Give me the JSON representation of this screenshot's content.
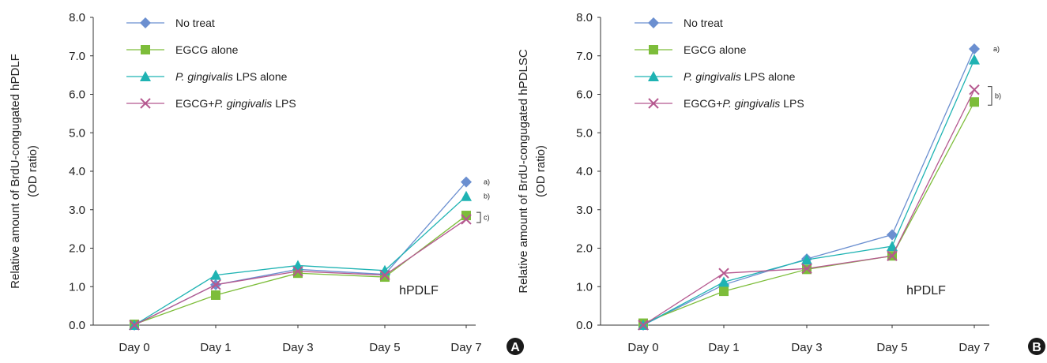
{
  "chart_data": [
    {
      "type": "line",
      "panel_label": "A",
      "ylabel_line1": "Relative amount of BrdU-congugated hPDLF",
      "ylabel_line2": "(OD ratio)",
      "annotation": "hPDLF",
      "categories": [
        "Day 0",
        "Day 1",
        "Day 3",
        "Day 5",
        "Day 7"
      ],
      "ylim": [
        0,
        8
      ],
      "yticks": [
        "0.0",
        "1.0",
        "2.0",
        "3.0",
        "4.0",
        "5.0",
        "6.0",
        "7.0",
        "8.0"
      ],
      "series": [
        {
          "name": "No treat",
          "values": [
            0.0,
            1.05,
            1.45,
            1.32,
            3.72
          ],
          "color": "#6b8fd0",
          "marker": "diamond"
        },
        {
          "name": "EGCG alone",
          "values": [
            0.02,
            0.78,
            1.35,
            1.25,
            2.85
          ],
          "color": "#7dbd3a",
          "marker": "square"
        },
        {
          "name": "P. gingivalis LPS alone",
          "name_italic": "P. gingivalis",
          "name_rest": " LPS alone",
          "values": [
            0.0,
            1.3,
            1.55,
            1.42,
            3.35
          ],
          "color": "#1fb3b3",
          "marker": "triangle"
        },
        {
          "name": "EGCG+P. gingivalis LPS",
          "name_prefix": "EGCG+",
          "name_italic": "P. gingivalis",
          "name_rest": " LPS",
          "values": [
            0.0,
            1.05,
            1.4,
            1.3,
            2.75
          ],
          "color": "#b5588f",
          "marker": "x"
        }
      ],
      "superscripts": [
        {
          "text": "a)",
          "series": 0
        },
        {
          "text": "b)",
          "series": 2
        },
        {
          "text": "c)",
          "bracket": true
        }
      ]
    },
    {
      "type": "line",
      "panel_label": "B",
      "ylabel_line1": "Relative amount of BrdU-congugated hPDLSC",
      "ylabel_line2": "(OD ratio)",
      "annotation": "hPDLF",
      "categories": [
        "Day 0",
        "Day 1",
        "Day 3",
        "Day 5",
        "Day 7"
      ],
      "ylim": [
        0,
        8
      ],
      "yticks": [
        "0.0",
        "1.0",
        "2.0",
        "3.0",
        "4.0",
        "5.0",
        "6.0",
        "7.0",
        "8.0"
      ],
      "series": [
        {
          "name": "No treat",
          "values": [
            0.0,
            1.05,
            1.72,
            2.35,
            7.18
          ],
          "color": "#6b8fd0",
          "marker": "diamond"
        },
        {
          "name": "EGCG alone",
          "values": [
            0.05,
            0.88,
            1.45,
            1.8,
            5.8
          ],
          "color": "#7dbd3a",
          "marker": "square"
        },
        {
          "name": "P. gingivalis LPS alone",
          "name_italic": "P. gingivalis",
          "name_rest": " LPS alone",
          "values": [
            0.0,
            1.12,
            1.7,
            2.05,
            6.9
          ],
          "color": "#1fb3b3",
          "marker": "triangle"
        },
        {
          "name": "EGCG+P. gingivalis LPS",
          "name_prefix": "EGCG+",
          "name_italic": "P. gingivalis",
          "name_rest": " LPS",
          "values": [
            0.0,
            1.35,
            1.47,
            1.8,
            6.12
          ],
          "color": "#b5588f",
          "marker": "x"
        }
      ],
      "superscripts": [
        {
          "text": "a)",
          "series": 0
        },
        {
          "text": "b)",
          "bracket": true
        }
      ]
    }
  ]
}
